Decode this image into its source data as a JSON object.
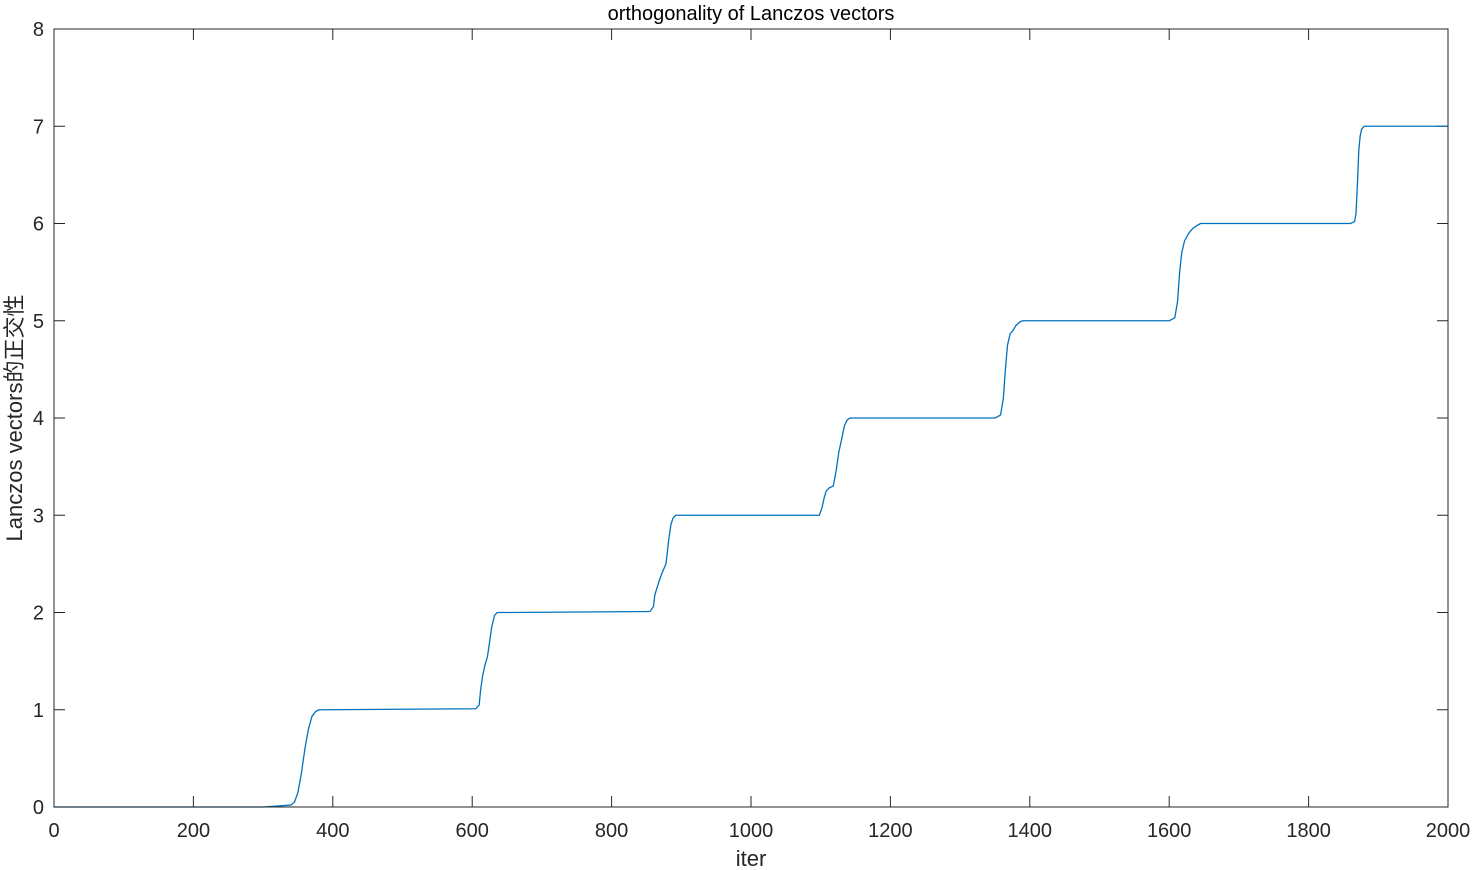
{
  "chart_data": {
    "type": "line",
    "title": "orthogonality of Lanczos vectors",
    "xlabel": "iter",
    "ylabel": "Lanczos vectors的正交性",
    "xlim": [
      0,
      2000
    ],
    "ylim": [
      0,
      8
    ],
    "xticks": [
      0,
      200,
      400,
      600,
      800,
      1000,
      1200,
      1400,
      1600,
      1800,
      2000
    ],
    "yticks": [
      0,
      1,
      2,
      3,
      4,
      5,
      6,
      7,
      8
    ],
    "grid": false,
    "box": true,
    "line_color": "#0072bd",
    "axis_color": "#262626",
    "series": [
      {
        "x": [
          0,
          300,
          340,
          345,
          350,
          355,
          360,
          365,
          370,
          375,
          380,
          390,
          605,
          610,
          612,
          615,
          618,
          622,
          628,
          632,
          636,
          640,
          645,
          855,
          860,
          862,
          865,
          868,
          872,
          878,
          882,
          885,
          888,
          892,
          898,
          1098,
          1102,
          1105,
          1108,
          1112,
          1118,
          1122,
          1126,
          1130,
          1134,
          1138,
          1142,
          1350,
          1358,
          1362,
          1365,
          1368,
          1372,
          1376,
          1380,
          1386,
          1390,
          1600,
          1608,
          1612,
          1615,
          1618,
          1622,
          1628,
          1634,
          1640,
          1645,
          1650,
          1860,
          1866,
          1868,
          1870,
          1872,
          1874,
          1876,
          1880,
          1885,
          2000
        ],
        "y": [
          0,
          0,
          0.02,
          0.05,
          0.15,
          0.35,
          0.6,
          0.8,
          0.93,
          0.98,
          1.0,
          1.0,
          1.01,
          1.05,
          1.2,
          1.35,
          1.45,
          1.55,
          1.85,
          1.97,
          2.0,
          2.0,
          2.0,
          2.01,
          2.06,
          2.18,
          2.25,
          2.32,
          2.4,
          2.5,
          2.75,
          2.9,
          2.97,
          3.0,
          3.0,
          3.0,
          3.08,
          3.18,
          3.25,
          3.28,
          3.3,
          3.45,
          3.65,
          3.78,
          3.92,
          3.98,
          4.0,
          4.0,
          4.03,
          4.2,
          4.5,
          4.75,
          4.87,
          4.9,
          4.95,
          4.99,
          5.0,
          5.0,
          5.03,
          5.2,
          5.5,
          5.7,
          5.82,
          5.9,
          5.95,
          5.98,
          6.0,
          6.0,
          6.0,
          6.02,
          6.1,
          6.4,
          6.75,
          6.9,
          6.97,
          7.0,
          7.0,
          7.0
        ]
      }
    ]
  }
}
